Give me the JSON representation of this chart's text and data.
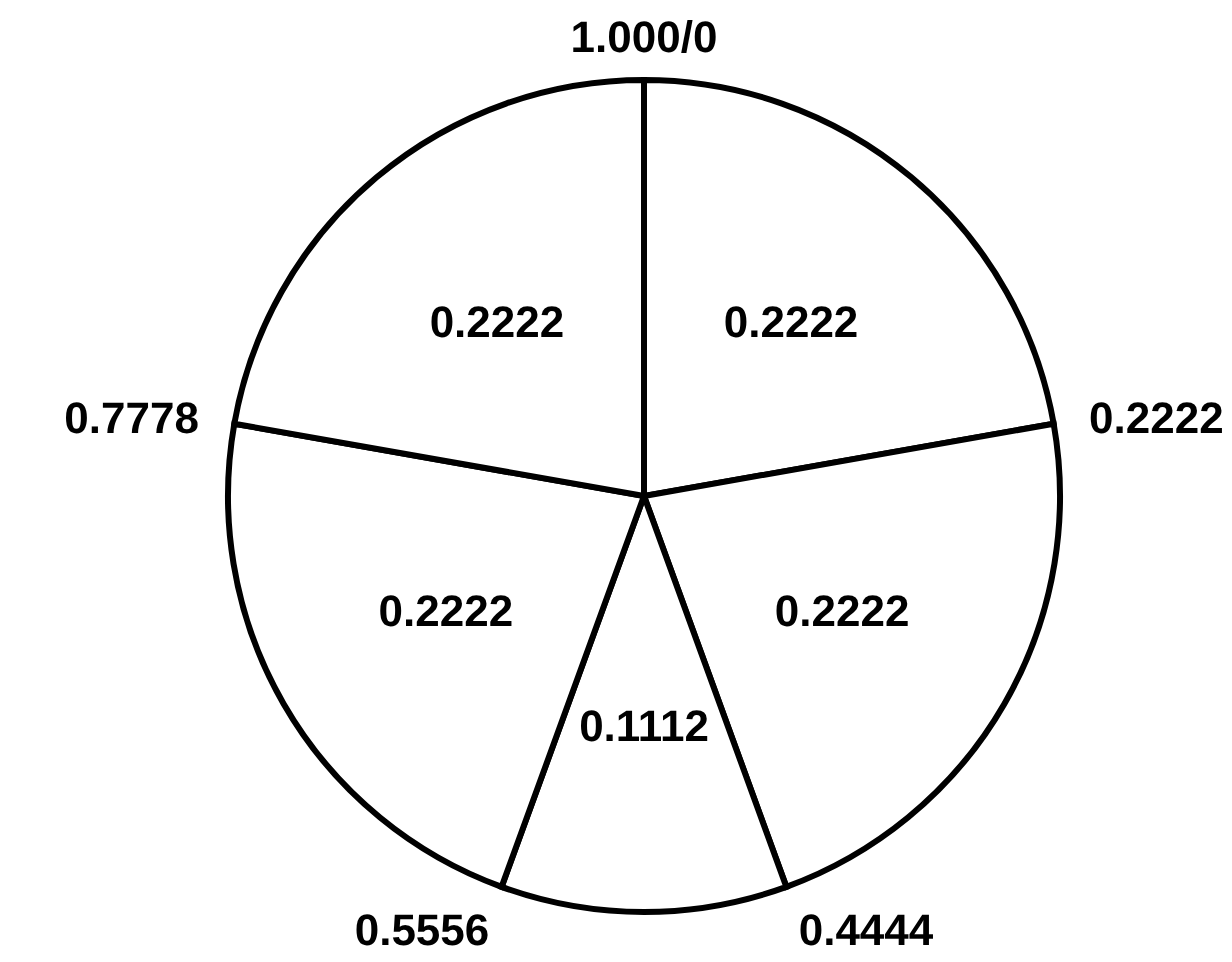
{
  "chart_data": {
    "type": "pie",
    "categories": [
      null,
      null,
      null,
      null,
      null
    ],
    "values": [
      0.2222,
      0.2222,
      0.1112,
      0.2222,
      0.2222
    ],
    "colors": [
      "#ffffff",
      "#ffffff",
      "#ffffff",
      "#ffffff",
      "#ffffff"
    ],
    "data_labels": true,
    "annotations": [
      "1.000/0",
      "0.2222",
      "0.4444",
      "0.5556",
      "0.7778"
    ]
  }
}
